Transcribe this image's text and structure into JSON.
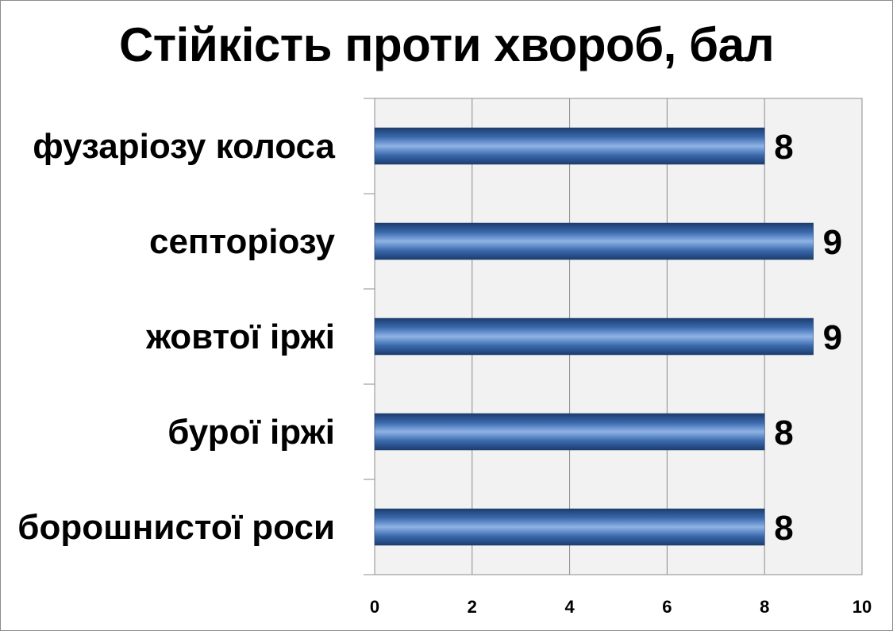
{
  "chart_data": {
    "type": "bar",
    "orientation": "horizontal",
    "title": "Стійкість проти хвороб, бал",
    "categories": [
      "фузаріозу колоса",
      "септоріозу",
      "жовтої іржі",
      "бурої іржі",
      "борошнистої роси"
    ],
    "values": [
      8,
      9,
      9,
      8,
      8
    ],
    "xlim": [
      0,
      10
    ],
    "xticks": [
      "0",
      "2",
      "4",
      "6",
      "8",
      "10"
    ],
    "grid": true,
    "bar_color": "#3f6fb3"
  }
}
